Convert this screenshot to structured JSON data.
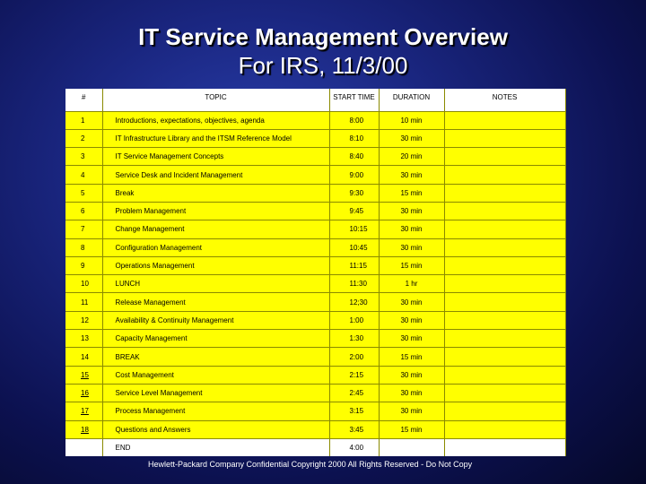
{
  "slide": {
    "title_line1": "IT Service Management Overview",
    "title_line2": "For IRS, 11/3/00",
    "footer": "Hewlett-Packard Company Confidential Copyright 2000 All Rights Reserved - Do Not Copy"
  },
  "table": {
    "headers": {
      "num": "#",
      "topic": "TOPIC",
      "start": "START TIME",
      "duration": "DURATION",
      "notes": "NOTES"
    },
    "rows": [
      {
        "num": "1",
        "topic": "Introductions, expectations, objectives, agenda",
        "start": "8:00",
        "duration": "10 min",
        "notes": ""
      },
      {
        "num": "2",
        "topic": "IT Infrastructure Library and the ITSM Reference Model",
        "start": "8:10",
        "duration": "30 min",
        "notes": ""
      },
      {
        "num": "3",
        "topic": "IT Service Management Concepts",
        "start": "8:40",
        "duration": "20 min",
        "notes": ""
      },
      {
        "num": "4",
        "topic": "Service Desk and Incident Management",
        "start": "9:00",
        "duration": "30 min",
        "notes": ""
      },
      {
        "num": "5",
        "topic": "Break",
        "start": "9:30",
        "duration": "15 min",
        "notes": ""
      },
      {
        "num": "6",
        "topic": "Problem Management",
        "start": "9:45",
        "duration": "30 min",
        "notes": ""
      },
      {
        "num": "7",
        "topic": "Change Management",
        "start": "10:15",
        "duration": "30 min",
        "notes": ""
      },
      {
        "num": "8",
        "topic": "Configuration Management",
        "start": "10:45",
        "duration": "30 min",
        "notes": ""
      },
      {
        "num": "9",
        "topic": "Operations Management",
        "start": "11:15",
        "duration": "15 min",
        "notes": ""
      },
      {
        "num": "10",
        "topic": "LUNCH",
        "start": "11:30",
        "duration": "1 hr",
        "notes": ""
      },
      {
        "num": "11",
        "topic": "Release Management",
        "start": "12;30",
        "duration": "30 min",
        "notes": ""
      },
      {
        "num": "12",
        "topic": "Availability & Continuity Management",
        "start": "1:00",
        "duration": "30 min",
        "notes": ""
      },
      {
        "num": "13",
        "topic": "Capacity Management",
        "start": "1:30",
        "duration": "30 min",
        "notes": ""
      },
      {
        "num": "14",
        "topic": "BREAK",
        "start": "2:00",
        "duration": "15 min",
        "notes": ""
      },
      {
        "num": "15",
        "topic": "Cost Management",
        "start": "2:15",
        "duration": "30 min",
        "notes": ""
      },
      {
        "num": "16",
        "topic": "Service Level Management",
        "start": "2:45",
        "duration": "30 min",
        "notes": ""
      },
      {
        "num": "17",
        "topic": "Process Management",
        "start": "3:15",
        "duration": "30 min",
        "notes": ""
      },
      {
        "num": "18",
        "topic": "Questions and Answers",
        "start": "3:45",
        "duration": "15 min",
        "notes": ""
      }
    ],
    "last_row": {
      "num": "",
      "topic": "END",
      "start": "4:00",
      "duration": "",
      "notes": ""
    }
  },
  "colors": {
    "background": "#1a2680",
    "table_fill": "#ffff00",
    "header_fill": "#ffffff",
    "title_text": "#ffffff"
  }
}
